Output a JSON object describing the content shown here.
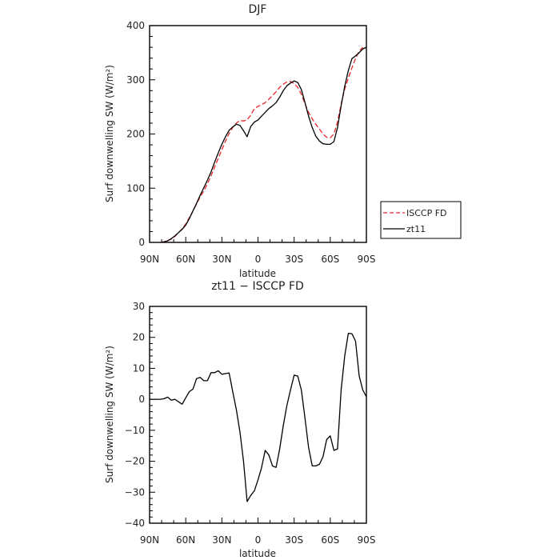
{
  "chart_data": [
    {
      "type": "line",
      "title": "DJF",
      "xlabel": "latitude",
      "ylabel": "Surf downwelling SW (W/m²)",
      "x_ticks": [
        "90N",
        "60N",
        "30N",
        "0",
        "30S",
        "60S",
        "90S"
      ],
      "xlim": [
        90,
        -90
      ],
      "ylim": [
        0,
        400
      ],
      "y_ticks": [
        "0",
        "100",
        "200",
        "300",
        "400"
      ],
      "legend_position": "right, outside plot",
      "series": [
        {
          "name": "ISCCP FD",
          "color": "#e8262b",
          "dash": "dashed",
          "points": [
            [
              81,
              0
            ],
            [
              78,
              1
            ],
            [
              75,
              3
            ],
            [
              72,
              6
            ],
            [
              69,
              11
            ],
            [
              66,
              18
            ],
            [
              63,
              25
            ],
            [
              60,
              34
            ],
            [
              57,
              46
            ],
            [
              54,
              58
            ],
            [
              51,
              71
            ],
            [
              48,
              84
            ],
            [
              45,
              95
            ],
            [
              42,
              108
            ],
            [
              39,
              123
            ],
            [
              36,
              139
            ],
            [
              33,
              155
            ],
            [
              30,
              171
            ],
            [
              27,
              187
            ],
            [
              24,
              201
            ],
            [
              21,
              212
            ],
            [
              18,
              220
            ],
            [
              15,
              225
            ],
            [
              12,
              224
            ],
            [
              9,
              226
            ],
            [
              6,
              235
            ],
            [
              3,
              247
            ],
            [
              0,
              251
            ],
            [
              -3,
              254
            ],
            [
              -6,
              258
            ],
            [
              -9,
              264
            ],
            [
              -12,
              271
            ],
            [
              -15,
              278
            ],
            [
              -18,
              286
            ],
            [
              -21,
              292
            ],
            [
              -24,
              296
            ],
            [
              -27,
              297
            ],
            [
              -30,
              293
            ],
            [
              -33,
              286
            ],
            [
              -36,
              273
            ],
            [
              -39,
              256
            ],
            [
              -42,
              240
            ],
            [
              -45,
              228
            ],
            [
              -48,
              218
            ],
            [
              -51,
              209
            ],
            [
              -54,
              200
            ],
            [
              -57,
              194
            ],
            [
              -60,
              193
            ],
            [
              -63,
              200
            ],
            [
              -66,
              222
            ],
            [
              -69,
              255
            ],
            [
              -72,
              283
            ],
            [
              -75,
              303
            ],
            [
              -78,
              322
            ],
            [
              -81,
              339
            ],
            [
              -84,
              353
            ],
            [
              -87,
              360
            ]
          ]
        },
        {
          "name": "zt11",
          "color": "#000000",
          "dash": "solid",
          "points": [
            [
              81,
              0
            ],
            [
              78,
              1
            ],
            [
              75,
              3
            ],
            [
              72,
              7
            ],
            [
              69,
              12
            ],
            [
              66,
              18
            ],
            [
              63,
              24
            ],
            [
              60,
              32
            ],
            [
              57,
              44
            ],
            [
              54,
              58
            ],
            [
              51,
              72
            ],
            [
              48,
              87
            ],
            [
              45,
              101
            ],
            [
              42,
              115
            ],
            [
              39,
              130
            ],
            [
              36,
              148
            ],
            [
              33,
              165
            ],
            [
              30,
              181
            ],
            [
              27,
              195
            ],
            [
              24,
              207
            ],
            [
              21,
              213
            ],
            [
              18,
              218
            ],
            [
              15,
              216
            ],
            [
              12,
              206
            ],
            [
              9,
              195
            ],
            [
              6,
              214
            ],
            [
              3,
              222
            ],
            [
              0,
              226
            ],
            [
              -3,
              233
            ],
            [
              -6,
              240
            ],
            [
              -9,
              247
            ],
            [
              -12,
              252
            ],
            [
              -15,
              258
            ],
            [
              -18,
              268
            ],
            [
              -21,
              280
            ],
            [
              -24,
              289
            ],
            [
              -27,
              294
            ],
            [
              -30,
              298
            ],
            [
              -33,
              295
            ],
            [
              -36,
              282
            ],
            [
              -39,
              258
            ],
            [
              -42,
              233
            ],
            [
              -45,
              212
            ],
            [
              -48,
              196
            ],
            [
              -51,
              187
            ],
            [
              -54,
              182
            ],
            [
              -57,
              181
            ],
            [
              -60,
              181
            ],
            [
              -63,
              186
            ],
            [
              -66,
              212
            ],
            [
              -69,
              252
            ],
            [
              -72,
              288
            ],
            [
              -75,
              317
            ],
            [
              -78,
              339
            ],
            [
              -81,
              344
            ],
            [
              -84,
              350
            ],
            [
              -87,
              357
            ],
            [
              -90,
              360
            ]
          ]
        }
      ]
    },
    {
      "type": "line",
      "title": "zt11 − ISCCP FD",
      "xlabel": "latitude",
      "ylabel": "Surf downwelling SW (W/m²)",
      "x_ticks": [
        "90N",
        "60N",
        "30N",
        "0",
        "30S",
        "60S",
        "90S"
      ],
      "xlim": [
        90,
        -90
      ],
      "ylim": [
        -40,
        30
      ],
      "y_ticks": [
        "−40",
        "−30",
        "−20",
        "−10",
        "0",
        "10",
        "20",
        "30"
      ],
      "series": [
        {
          "color": "#000000",
          "dash": "solid",
          "points": [
            [
              90,
              0
            ],
            [
              81,
              0
            ],
            [
              78,
              0.2
            ],
            [
              75,
              0.7
            ],
            [
              72,
              -0.3
            ],
            [
              69,
              0
            ],
            [
              66,
              -0.8
            ],
            [
              63,
              -1.6
            ],
            [
              60,
              0.5
            ],
            [
              57,
              2.5
            ],
            [
              54,
              3.3
            ],
            [
              51,
              6.7
            ],
            [
              48,
              7.1
            ],
            [
              45,
              6
            ],
            [
              42,
              6
            ],
            [
              39,
              8.6
            ],
            [
              36,
              8.6
            ],
            [
              33,
              9.2
            ],
            [
              30,
              8.1
            ],
            [
              27,
              8.3
            ],
            [
              24,
              8.5
            ],
            [
              21,
              2.5
            ],
            [
              18,
              -3.3
            ],
            [
              15,
              -10.5
            ],
            [
              12,
              -20
            ],
            [
              9,
              -33
            ],
            [
              6,
              -31
            ],
            [
              3,
              -29.5
            ],
            [
              0,
              -26
            ],
            [
              -3,
              -22
            ],
            [
              -6,
              -16.5
            ],
            [
              -9,
              -18
            ],
            [
              -12,
              -21.5
            ],
            [
              -15,
              -22
            ],
            [
              -18,
              -16
            ],
            [
              -21,
              -8.5
            ],
            [
              -24,
              -2
            ],
            [
              -27,
              3
            ],
            [
              -30,
              7.8
            ],
            [
              -33,
              7.5
            ],
            [
              -36,
              3
            ],
            [
              -39,
              -6
            ],
            [
              -42,
              -15.5
            ],
            [
              -45,
              -21.5
            ],
            [
              -48,
              -21.5
            ],
            [
              -51,
              -21
            ],
            [
              -54,
              -18.5
            ],
            [
              -57,
              -13
            ],
            [
              -60,
              -11.8
            ],
            [
              -63,
              -16.5
            ],
            [
              -66,
              -16
            ],
            [
              -69,
              3
            ],
            [
              -72,
              14
            ],
            [
              -75,
              21.3
            ],
            [
              -78,
              21.2
            ],
            [
              -81,
              18.8
            ],
            [
              -84,
              7.5
            ],
            [
              -87,
              3
            ],
            [
              -90,
              0.8
            ]
          ]
        }
      ]
    }
  ]
}
